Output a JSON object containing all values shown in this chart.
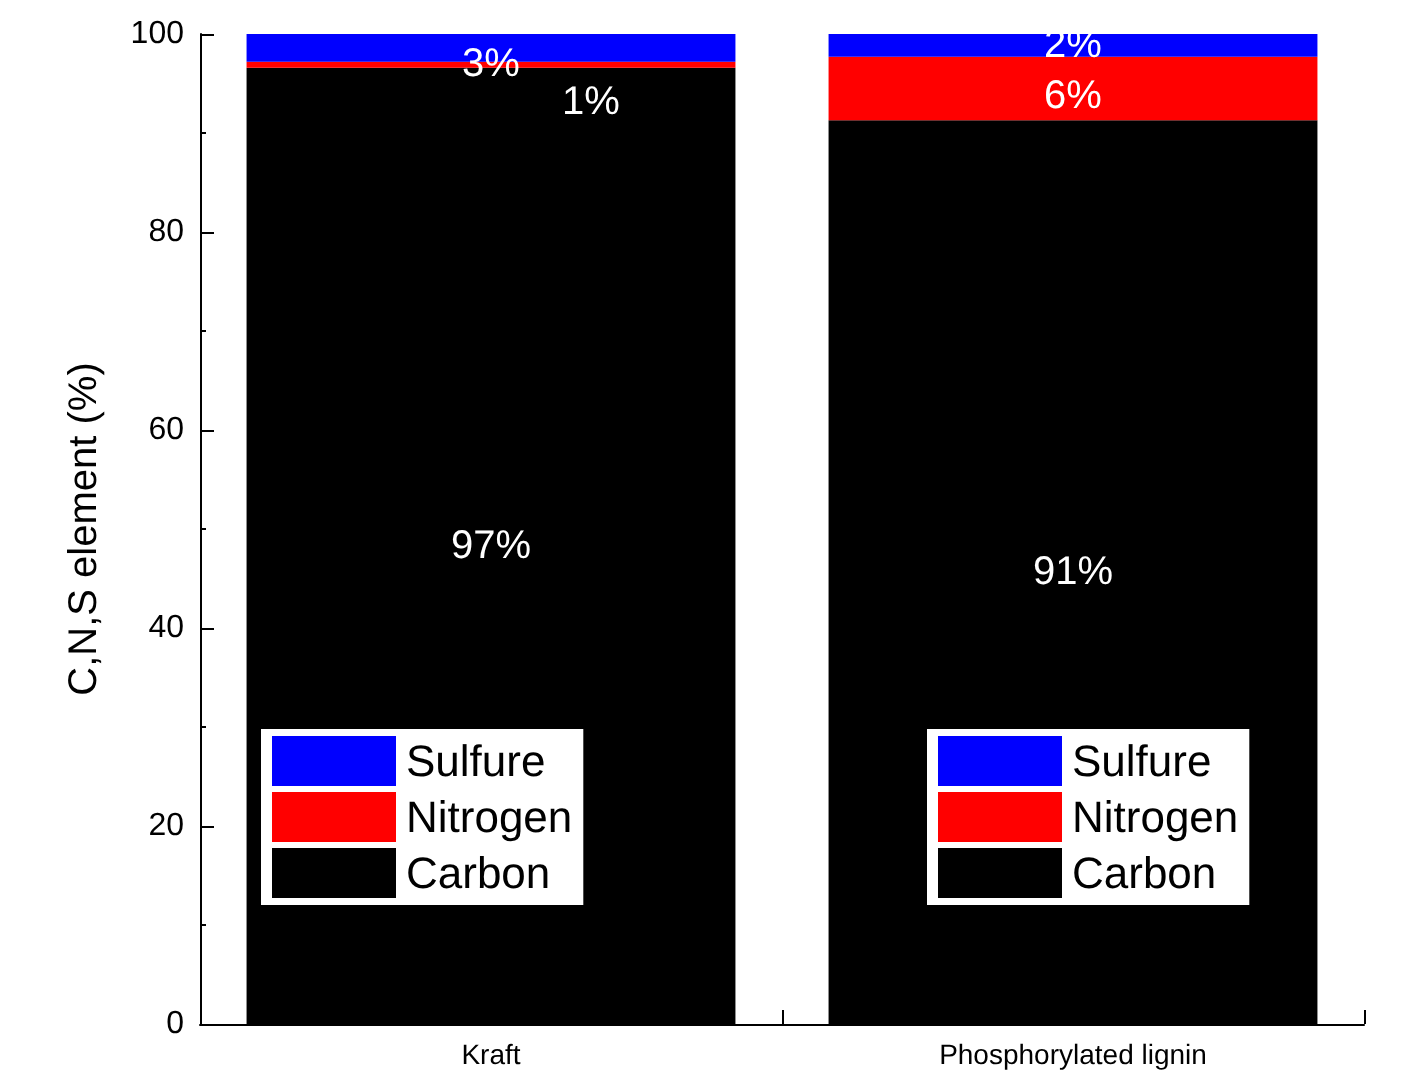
{
  "chart_data": {
    "type": "bar",
    "stacked": true,
    "ylabel": "C,N,S element (%)",
    "categories": [
      "Kraft",
      "Phosphorylated lignin"
    ],
    "series": [
      {
        "name": "Carbon",
        "color": "#000000",
        "values": [
          96.6,
          91.3
        ],
        "value_labels": [
          "97%",
          "91%"
        ]
      },
      {
        "name": "Nitrogen",
        "color": "#ff0000",
        "values": [
          0.6,
          6.4
        ],
        "value_labels": [
          "1%",
          "6%"
        ]
      },
      {
        "name": "Sulfure",
        "color": "#0000ff",
        "values": [
          2.8,
          2.3
        ],
        "value_labels": [
          "3%",
          "2%"
        ]
      }
    ],
    "ylim": [
      0,
      100
    ],
    "yticks": [
      0,
      20,
      40,
      60,
      80,
      100
    ],
    "grid": false,
    "legend": "bottom"
  }
}
